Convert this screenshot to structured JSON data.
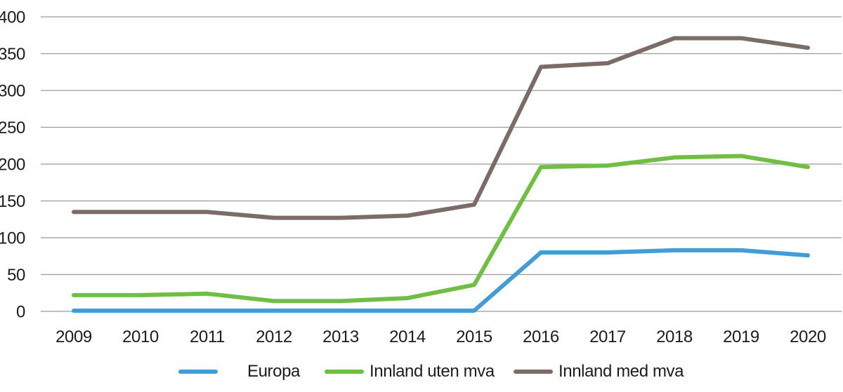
{
  "chart_data": {
    "type": "line",
    "title": "",
    "xlabel": "",
    "ylabel": "",
    "x": [
      2009,
      2010,
      2011,
      2012,
      2013,
      2014,
      2015,
      2016,
      2017,
      2018,
      2019,
      2020
    ],
    "series": [
      {
        "name": "Europa",
        "color": "#429CD6",
        "values": [
          1,
          1,
          1,
          1,
          1,
          1,
          1,
          80,
          80,
          83,
          83,
          76
        ]
      },
      {
        "name": "Innland uten mva",
        "color": "#71BE45",
        "values": [
          22,
          22,
          24,
          14,
          14,
          18,
          36,
          196,
          198,
          209,
          211,
          196
        ]
      },
      {
        "name": "Innland med mva",
        "color": "#7B6C67",
        "values": [
          135,
          135,
          135,
          127,
          127,
          130,
          145,
          332,
          337,
          371,
          371,
          358
        ]
      }
    ],
    "ylim": [
      0,
      400
    ],
    "yticks": [
      0,
      50,
      100,
      150,
      200,
      250,
      300,
      350,
      400
    ],
    "grid": "horizontal-only",
    "legend_position": "bottom",
    "gridline_color": "#9A9A9A",
    "label_color": "#1C1C1C"
  }
}
